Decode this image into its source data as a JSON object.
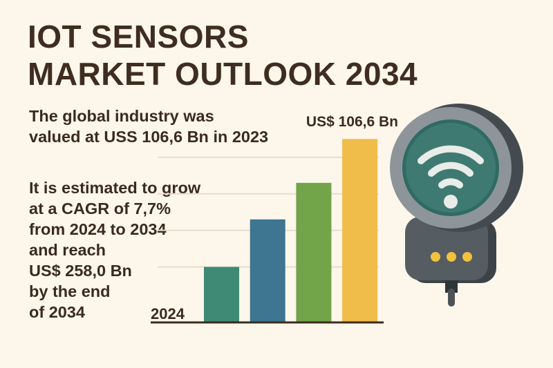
{
  "title": {
    "line1": "IOT SENSORS",
    "line2": "MARKET OUTLOOK 2034"
  },
  "intro": {
    "lines": [
      "The global industry was",
      "valued at USS 106,6 Bn in 2023"
    ]
  },
  "forecast": {
    "lines": [
      "It is estimated to grow",
      "at a CAGR of 7,7%",
      "from 2024 to 2034",
      "and reach",
      "US$ 258,0 Bn",
      "by the end",
      "of 2034"
    ]
  },
  "chart_data": {
    "type": "bar",
    "title": "",
    "xlabel": "",
    "ylabel": "",
    "categories": [
      "2024",
      "",
      "",
      ""
    ],
    "values": [
      1.5,
      2.8,
      3.8,
      5.0
    ],
    "colors": [
      "#3f8a74",
      "#3e7590",
      "#72a44a",
      "#f0bc4a"
    ],
    "ylim": [
      0,
      5.1
    ],
    "grid": true,
    "gridlines": [
      1.5,
      2.5,
      3.5,
      4.5
    ],
    "start_label": "2024",
    "top_annotation": "US$ 106,6 Bn",
    "legend": "none"
  },
  "icon": {
    "name": "iot-sensor-wifi-device",
    "led_color": "#f3c23c",
    "screen_color": "#3e7a72"
  }
}
